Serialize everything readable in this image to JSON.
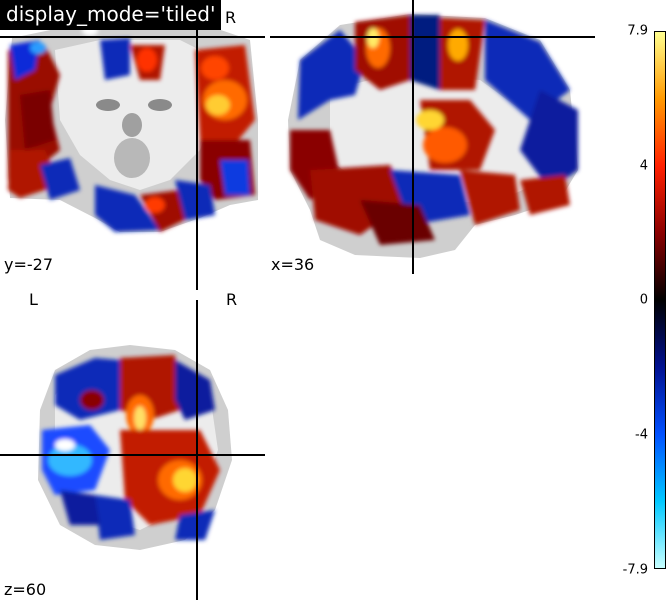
{
  "title": "display_mode='tiled'",
  "orientation": {
    "left": "L",
    "right": "R"
  },
  "views": {
    "coronal": {
      "label": "y=-27"
    },
    "sagittal": {
      "label": "x=36"
    },
    "axial": {
      "label": "z=60"
    }
  },
  "colorbar": {
    "max": "7.9",
    "t4": "4",
    "zero": "0",
    "tm4": "-4",
    "min": "-7.9",
    "colormap": [
      "#c8ffff",
      "#00c8ff",
      "#0050ff",
      "#001090",
      "#000000",
      "#8a0000",
      "#ff2000",
      "#ff9900",
      "#ffff90"
    ]
  }
}
